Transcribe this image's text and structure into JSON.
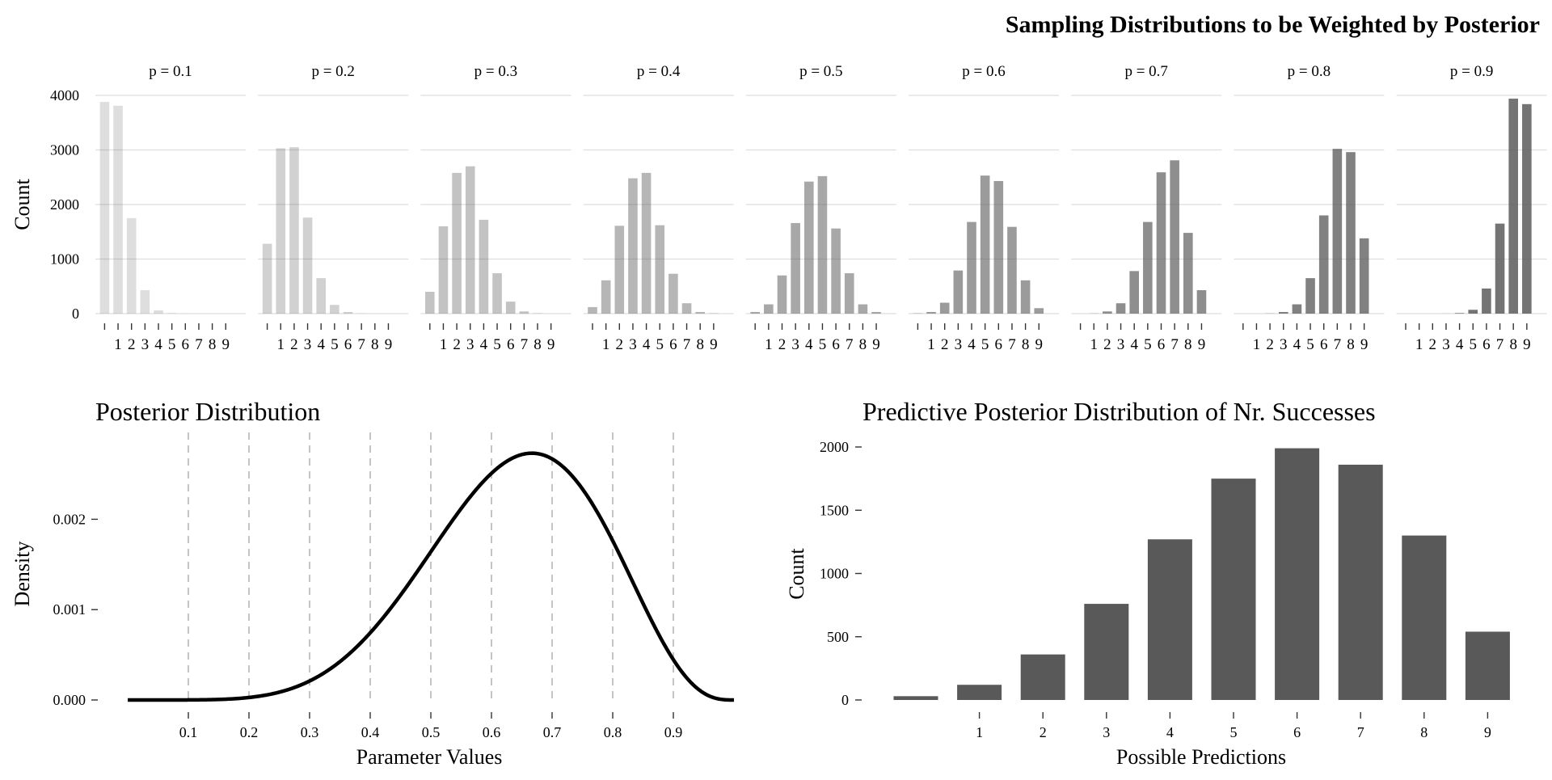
{
  "figure": {
    "top_title": "Sampling Distributions to be Weighted by Posterior"
  },
  "chart_data": [
    {
      "type": "bar",
      "title": "Sampling Distributions to be Weighted by Posterior",
      "ylabel": "Count",
      "xlabel": "",
      "ylim": [
        0,
        4000
      ],
      "y_ticks": [
        "0",
        "1000",
        "2000",
        "3000",
        "4000"
      ],
      "x_tick_labels": [
        "1",
        "2",
        "3",
        "4",
        "5",
        "6",
        "7",
        "8",
        "9"
      ],
      "categories": [
        "0",
        "1",
        "2",
        "3",
        "4",
        "5",
        "6",
        "7",
        "8",
        "9"
      ],
      "grid": true,
      "facets": [
        {
          "label": "p = 0.1",
          "alpha": 0.1,
          "values": [
            3880,
            3810,
            1750,
            430,
            60,
            8,
            1,
            0,
            0,
            0
          ]
        },
        {
          "label": "p = 0.2",
          "alpha": 0.2,
          "values": [
            1280,
            3030,
            3050,
            1760,
            650,
            160,
            30,
            3,
            0,
            0
          ]
        },
        {
          "label": "p = 0.3",
          "alpha": 0.3,
          "values": [
            400,
            1600,
            2580,
            2700,
            1720,
            740,
            220,
            40,
            5,
            0
          ]
        },
        {
          "label": "p = 0.4",
          "alpha": 0.4,
          "values": [
            120,
            610,
            1610,
            2480,
            2580,
            1620,
            730,
            190,
            30,
            5
          ]
        },
        {
          "label": "p = 0.5",
          "alpha": 0.5,
          "values": [
            30,
            170,
            700,
            1660,
            2420,
            2520,
            1560,
            740,
            170,
            30
          ]
        },
        {
          "label": "p = 0.6",
          "alpha": 0.6,
          "values": [
            5,
            30,
            200,
            790,
            1680,
            2530,
            2430,
            1590,
            610,
            100
          ]
        },
        {
          "label": "p = 0.7",
          "alpha": 0.7,
          "values": [
            0,
            3,
            40,
            190,
            780,
            1680,
            2590,
            2810,
            1480,
            430
          ]
        },
        {
          "label": "p = 0.8",
          "alpha": 0.8,
          "values": [
            0,
            0,
            3,
            30,
            170,
            650,
            1800,
            3020,
            2960,
            1380
          ]
        },
        {
          "label": "p = 0.9",
          "alpha": 0.9,
          "values": [
            0,
            0,
            0,
            1,
            10,
            70,
            460,
            1650,
            3940,
            3840
          ]
        }
      ]
    },
    {
      "type": "line",
      "title": "Posterior Distribution",
      "xlabel": "Parameter Values",
      "ylabel": "Density",
      "xlim": [
        0,
        1
      ],
      "ylim": [
        0,
        0.0028
      ],
      "x_ticks": [
        "0.1",
        "0.2",
        "0.3",
        "0.4",
        "0.5",
        "0.6",
        "0.7",
        "0.8",
        "0.9"
      ],
      "y_ticks": [
        "0.000",
        "0.001",
        "0.002"
      ],
      "reference_lines_x": [
        0.1,
        0.2,
        0.3,
        0.4,
        0.5,
        0.6,
        0.7,
        0.8,
        0.9
      ],
      "distribution": {
        "family": "beta",
        "a": 7,
        "b": 4,
        "density_scale": 0.001
      },
      "peak": {
        "x": 0.667,
        "y": 0.00273
      }
    },
    {
      "type": "bar",
      "title": "Predictive Posterior Distribution of Nr. Successes",
      "xlabel": "Possible Predictions",
      "ylabel": "Count",
      "ylim": [
        0,
        2000
      ],
      "y_ticks": [
        "0",
        "500",
        "1000",
        "1500",
        "2000"
      ],
      "x_tick_labels": [
        "1",
        "2",
        "3",
        "4",
        "5",
        "6",
        "7",
        "8",
        "9"
      ],
      "categories": [
        "0",
        "1",
        "2",
        "3",
        "4",
        "5",
        "6",
        "7",
        "8",
        "9"
      ],
      "values": [
        30,
        120,
        360,
        760,
        1270,
        1750,
        1990,
        1860,
        1300,
        540
      ]
    }
  ]
}
